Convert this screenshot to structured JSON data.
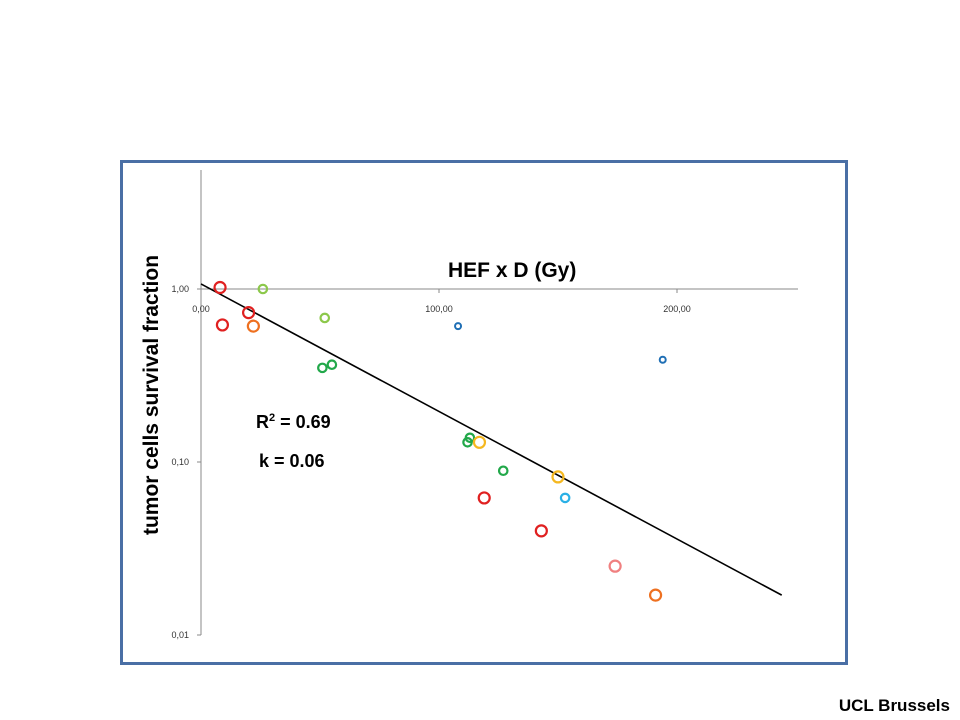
{
  "chart_data": {
    "type": "scatter",
    "xlabel": "HEF x D",
    "xlabel_unit": "(Gy)",
    "ylabel": "tumor cells survival fraction",
    "x_tick_labels": [
      "0,00",
      "100,00",
      "200,00"
    ],
    "x_ticks": [
      0,
      100,
      200
    ],
    "y_tick_labels": [
      "1,00",
      "0,10",
      "0,01"
    ],
    "y_ticks": [
      1.0,
      0.1,
      0.01
    ],
    "y_scale": "log",
    "xlim": [
      0,
      250
    ],
    "ylim": [
      0.01,
      4.3
    ],
    "grid": false,
    "annotations": {
      "r2_prefix": "R",
      "r2_sup": "2",
      "r2_suffix": " = 0.69",
      "k_text": "k  = 0.06"
    },
    "points": [
      {
        "x": 8,
        "y": 1.02,
        "color": "#e02020",
        "size": "large"
      },
      {
        "x": 9,
        "y": 0.62,
        "color": "#e02020",
        "size": "large"
      },
      {
        "x": 20,
        "y": 0.73,
        "color": "#e02020",
        "size": "large"
      },
      {
        "x": 22,
        "y": 0.61,
        "color": "#ee7020",
        "size": "large"
      },
      {
        "x": 26,
        "y": 1.0,
        "color": "#8cc84b",
        "size": "medium"
      },
      {
        "x": 52,
        "y": 0.68,
        "color": "#8cc84b",
        "size": "medium"
      },
      {
        "x": 51,
        "y": 0.35,
        "color": "#22a84a",
        "size": "medium"
      },
      {
        "x": 55,
        "y": 0.365,
        "color": "#22a84a",
        "size": "medium"
      },
      {
        "x": 108,
        "y": 0.61,
        "color": "#1f6fb5",
        "size": "small"
      },
      {
        "x": 112,
        "y": 0.13,
        "color": "#22a84a",
        "size": "medium"
      },
      {
        "x": 113,
        "y": 0.138,
        "color": "#22a84a",
        "size": "medium"
      },
      {
        "x": 117,
        "y": 0.13,
        "color": "#f5b820",
        "size": "large"
      },
      {
        "x": 119,
        "y": 0.062,
        "color": "#e02020",
        "size": "large"
      },
      {
        "x": 127,
        "y": 0.089,
        "color": "#22a84a",
        "size": "medium"
      },
      {
        "x": 143,
        "y": 0.04,
        "color": "#e02020",
        "size": "large"
      },
      {
        "x": 150,
        "y": 0.082,
        "color": "#f5b820",
        "size": "large"
      },
      {
        "x": 153,
        "y": 0.062,
        "color": "#2ab0e6",
        "size": "medium"
      },
      {
        "x": 174,
        "y": 0.025,
        "color": "#f08080",
        "size": "large"
      },
      {
        "x": 191,
        "y": 0.017,
        "color": "#ee7020",
        "size": "large"
      },
      {
        "x": 194,
        "y": 0.39,
        "color": "#1f6fb5",
        "size": "small"
      }
    ],
    "trendline": {
      "x": [
        0,
        244
      ],
      "y": [
        1.07,
        0.017
      ],
      "color": "#000000"
    }
  },
  "footer": {
    "text": "UCL Brussels"
  },
  "colors": {
    "frame": "#4a6fa5",
    "axis": "#888888"
  }
}
